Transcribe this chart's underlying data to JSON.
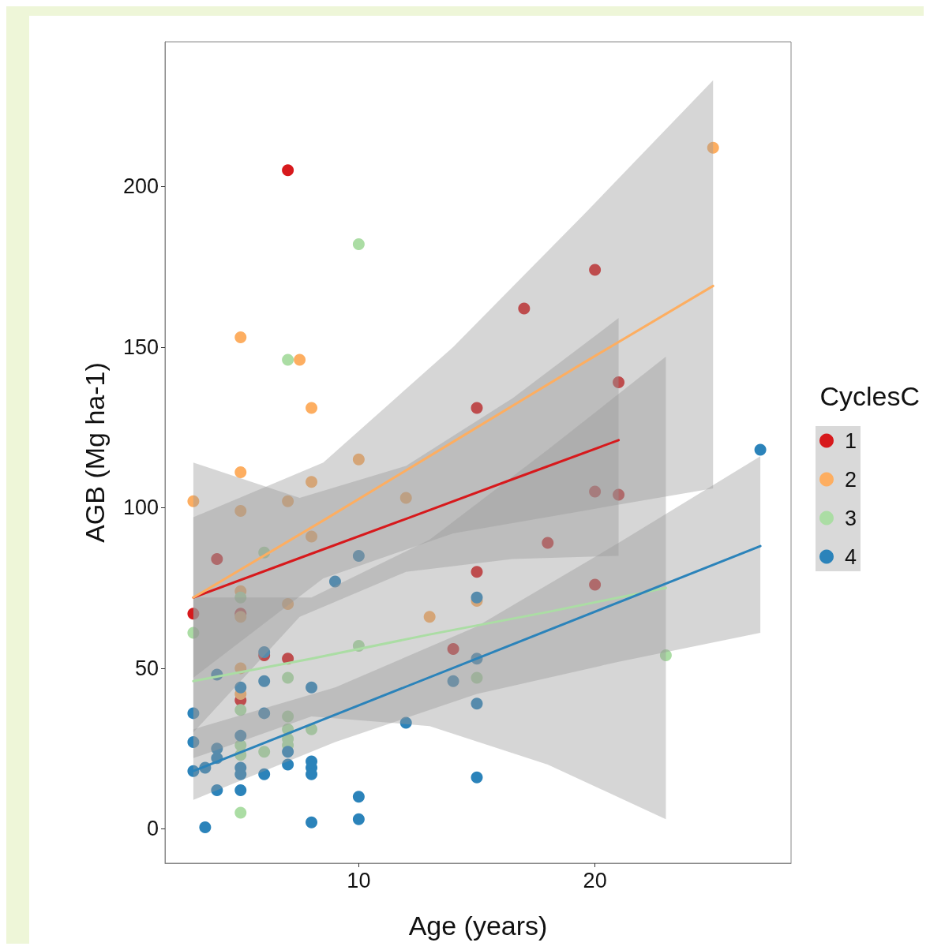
{
  "chart_data": {
    "type": "scatter",
    "xlabel": "Age (years)",
    "ylabel": "AGB (Mg ha-1)",
    "legend_title": "CyclesC",
    "xlim": [
      1.8,
      28.3
    ],
    "xticks": [
      10,
      20
    ],
    "ylim": [
      -10.7,
      245
    ],
    "yticks": [
      0,
      50,
      100,
      150,
      200
    ],
    "grid": false,
    "legend": "right",
    "marker": "circle",
    "series": [
      {
        "name": "1",
        "color": "#d7191c",
        "x": [
          7,
          3,
          4,
          5,
          5,
          6,
          7,
          14,
          15,
          15,
          17,
          18,
          20,
          20,
          20,
          21,
          21
        ],
        "values": [
          205,
          67,
          84,
          67,
          40,
          54,
          53,
          56,
          80,
          131,
          162,
          89,
          174,
          105,
          76,
          139,
          104
        ]
      },
      {
        "name": "2",
        "color": "#fdae61",
        "x": [
          3,
          5,
          5,
          5,
          5,
          5,
          5,
          5,
          7.5,
          7,
          7,
          8,
          8,
          8,
          10,
          12,
          13,
          15,
          25
        ],
        "values": [
          102,
          153,
          111,
          99,
          74,
          66,
          50,
          42,
          146,
          102,
          70,
          131,
          108,
          91,
          115,
          103,
          66,
          71,
          212
        ]
      },
      {
        "name": "3",
        "color": "#abdda4",
        "x": [
          10,
          7,
          3,
          5,
          5,
          5,
          5,
          5,
          6,
          6,
          7,
          7,
          7,
          7,
          7,
          8,
          10,
          15,
          23
        ],
        "values": [
          182,
          146,
          61,
          72,
          37,
          26,
          23,
          5,
          86,
          24,
          47,
          35,
          31,
          28,
          26,
          31,
          57,
          47,
          54
        ]
      },
      {
        "name": "4",
        "color": "#2b83ba",
        "x": [
          27,
          10,
          9,
          15,
          6,
          4,
          5,
          6,
          8,
          14,
          15,
          15,
          12,
          3,
          6,
          3,
          4,
          5,
          4,
          3,
          3.5,
          5,
          5,
          6,
          7,
          7,
          8,
          8,
          8,
          4,
          5,
          10,
          10,
          8,
          3.5,
          15
        ],
        "values": [
          118,
          85,
          77,
          72,
          55,
          48,
          44,
          46,
          44,
          46,
          53,
          39,
          33,
          36,
          36,
          27,
          25,
          29,
          22,
          18,
          19,
          19,
          17,
          17,
          24,
          20,
          21,
          19,
          17,
          12,
          12,
          10,
          3,
          2,
          0.5,
          16
        ]
      },
      {
        "type": "line",
        "marker": "none",
        "color": "#d7191c",
        "x": [
          3,
          7.5,
          12,
          16.5,
          21
        ],
        "values": [
          72,
          84.3,
          96.5,
          108.8,
          121
        ],
        "lower": [
          30,
          66,
          80,
          84,
          85
        ],
        "upper": [
          114,
          103,
          113,
          134,
          159
        ]
      },
      {
        "type": "line",
        "marker": "none",
        "color": "#fdae61",
        "x": [
          3,
          8.5,
          14,
          19.5,
          25
        ],
        "values": [
          72,
          96,
          120.5,
          145,
          169
        ],
        "lower": [
          47,
          78,
          92,
          99,
          106
        ],
        "upper": [
          97,
          114,
          150,
          191,
          233
        ]
      },
      {
        "type": "line",
        "marker": "none",
        "color": "#abdda4",
        "x": [
          3,
          8,
          13,
          18,
          23
        ],
        "values": [
          46,
          53,
          60.5,
          67.5,
          75
        ],
        "lower": [
          22,
          35,
          32,
          20,
          3
        ],
        "upper": [
          72,
          72,
          90,
          118,
          147
        ]
      },
      {
        "type": "line",
        "marker": "none",
        "color": "#2b83ba",
        "x": [
          3,
          9,
          15,
          21,
          27
        ],
        "values": [
          18,
          35.5,
          53,
          70.5,
          88
        ],
        "lower": [
          9,
          27,
          42,
          52,
          61
        ],
        "upper": [
          31,
          44,
          63,
          89,
          116
        ]
      }
    ]
  }
}
